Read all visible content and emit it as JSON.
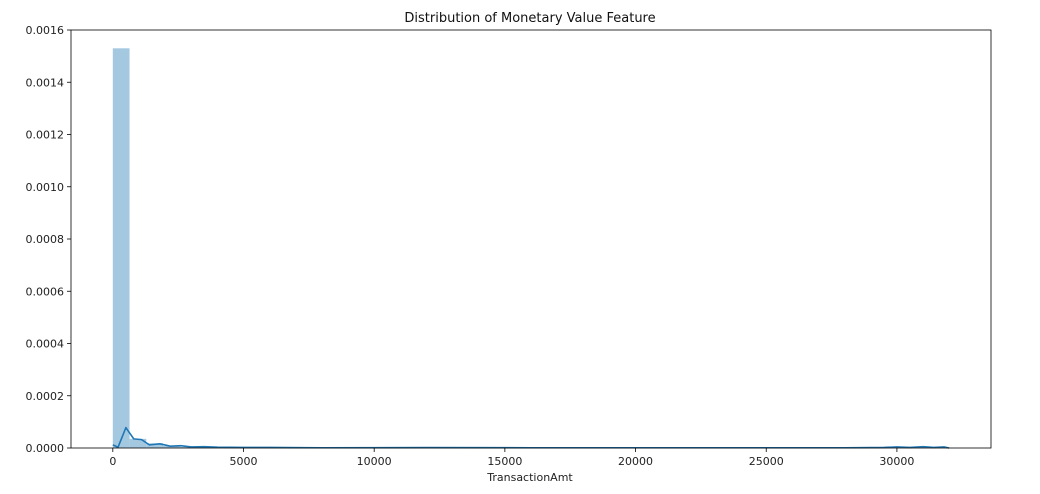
{
  "chart_data": {
    "type": "bar",
    "title": "Distribution of Monetary Value Feature",
    "xlabel": "TransactionAmt",
    "ylabel": "",
    "xlim": [
      -1600,
      33600
    ],
    "ylim": [
      0,
      0.0016
    ],
    "xticks": [
      0,
      5000,
      10000,
      15000,
      20000,
      25000,
      30000
    ],
    "yticks": [
      0.0,
      0.0002,
      0.0004,
      0.0006,
      0.0008,
      0.001,
      0.0012,
      0.0014,
      0.0016
    ],
    "ytick_labels": [
      "0.0000",
      "0.0002",
      "0.0004",
      "0.0006",
      "0.0008",
      "0.0010",
      "0.0012",
      "0.0014",
      "0.0016"
    ],
    "grid": false,
    "bar_color": "#a5c8e1",
    "line_color": "#1f77b4",
    "histogram": {
      "bin_width": 640,
      "bins": [
        {
          "x": 0,
          "y": 0.00153
        },
        {
          "x": 640,
          "y": 3.5e-05
        },
        {
          "x": 1280,
          "y": 1.8e-05
        },
        {
          "x": 1920,
          "y": 8e-06
        },
        {
          "x": 2560,
          "y": 4e-06
        },
        {
          "x": 3200,
          "y": 3e-06
        },
        {
          "x": 3840,
          "y": 2e-06
        }
      ]
    },
    "kde": {
      "x": [
        0,
        200,
        500,
        800,
        1100,
        1400,
        1800,
        2200,
        2600,
        3000,
        3500,
        4000,
        5000,
        6000,
        8000,
        12000,
        16000,
        20000,
        24000,
        28000,
        29500,
        30000,
        30500,
        31000,
        31400,
        31800,
        32000
      ],
      "y": [
        1.2e-05,
        3e-06,
        7.8e-05,
        3.5e-05,
        3.2e-05,
        1.2e-05,
        1.6e-05,
        7e-06,
        9e-06,
        4e-06,
        5e-06,
        3e-06,
        2e-06,
        2e-06,
        1e-06,
        1.5e-06,
        1e-06,
        1e-06,
        1e-06,
        1e-06,
        2e-06,
        4e-06,
        2e-06,
        5e-06,
        2e-06,
        4e-06,
        0.0
      ]
    }
  }
}
